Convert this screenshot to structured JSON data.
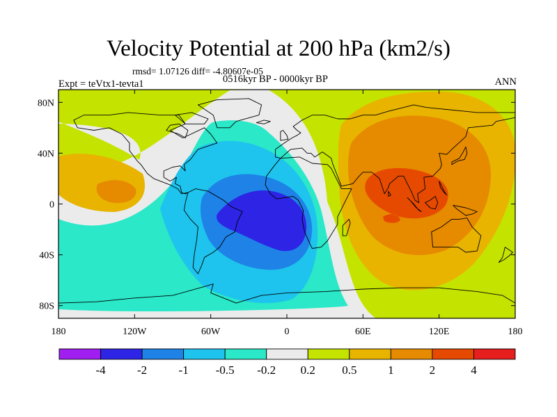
{
  "title": "Velocity Potential at 200 hPa (km2/s)",
  "stats_label": "rmsd= 1.07126 diff= -4.80607e-05",
  "period_label": "0516kyr BP - 0000kyr BP",
  "expt_label": "Expt = teVtx1-tevta1",
  "season_label": "ANN",
  "chart_data": {
    "type": "heatmap",
    "projection": "cylindrical-equidistant",
    "title": "Velocity Potential at 200 hPa (km2/s)",
    "xlabel": "",
    "ylabel": "",
    "xlim": [
      -180,
      180
    ],
    "ylim": [
      -90,
      90
    ],
    "x_ticks": [
      {
        "value": -180,
        "label": "180"
      },
      {
        "value": -120,
        "label": "120W"
      },
      {
        "value": -60,
        "label": "60W"
      },
      {
        "value": 0,
        "label": "0"
      },
      {
        "value": 60,
        "label": "60E"
      },
      {
        "value": 120,
        "label": "120E"
      },
      {
        "value": 180,
        "label": "180"
      }
    ],
    "y_ticks": [
      {
        "value": 80,
        "label": "80N"
      },
      {
        "value": 40,
        "label": "40N"
      },
      {
        "value": 0,
        "label": "0"
      },
      {
        "value": -40,
        "label": "40S"
      },
      {
        "value": -80,
        "label": "80S"
      }
    ],
    "colorbar": {
      "boundaries": [
        -4,
        -2,
        -1,
        -0.5,
        -0.2,
        0.2,
        0.5,
        1,
        2,
        4
      ],
      "labels": [
        "-4",
        "-2",
        "-1",
        "-0.5",
        "-0.2",
        "0.2",
        "0.5",
        "1",
        "2",
        "4"
      ],
      "colors": [
        "#a01ef0",
        "#2d24e6",
        "#1e82e6",
        "#1ec4ed",
        "#2ae8c8",
        "#ebebeb",
        "#c4e400",
        "#e8b400",
        "#e68a00",
        "#e64a00",
        "#e61e1e"
      ]
    },
    "features": {
      "low_center": {
        "lon": -15,
        "lat": -20,
        "level": "< -2",
        "label": "negative center over tropical Atlantic / South America"
      },
      "high_center": {
        "lon": 95,
        "lat": 15,
        "level": "2 to 4",
        "label": "positive center over South/Southeast Asia"
      },
      "secondary_high": {
        "lon": -145,
        "lat": 10,
        "level": "1 to 2",
        "label": "positive center over central Pacific"
      }
    }
  }
}
